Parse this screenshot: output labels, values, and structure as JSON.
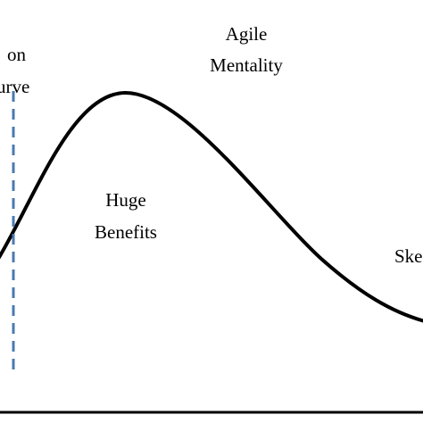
{
  "labels": {
    "left_line1": "on",
    "left_line2": "urve",
    "top_line1": "Agile",
    "top_line2": "Mentality",
    "center_line1": "Huge",
    "center_line2": "Benefits",
    "right_line1": "Ske"
  },
  "colors": {
    "curve": "#000000",
    "dashed_marker": "#4a7ab0",
    "axis": "#000000",
    "text": "#000000"
  }
}
